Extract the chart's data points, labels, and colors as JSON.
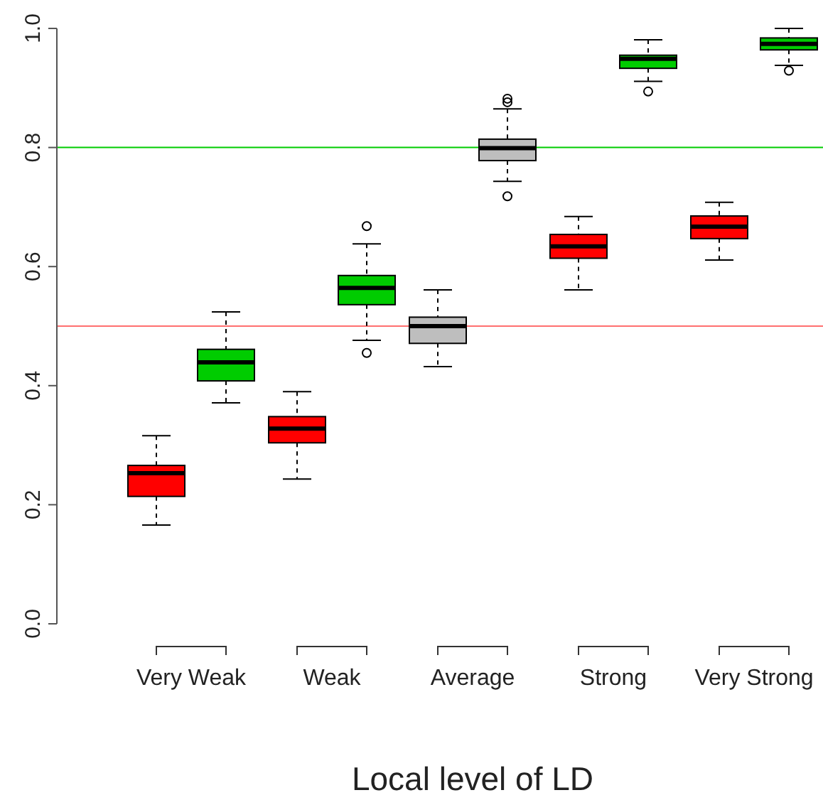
{
  "chart_data": {
    "type": "box",
    "xlabel": "Local level of LD",
    "categories": [
      "Very Weak",
      "Weak",
      "Average",
      "Strong",
      "Very Strong"
    ],
    "ylim": [
      0,
      1
    ],
    "yticks": [
      {
        "value": 0,
        "label": "0.0"
      },
      0.2,
      0.4,
      0.6,
      0.8,
      {
        "value": 1,
        "label": "1.0"
      }
    ],
    "series": [
      {
        "colors": [
          "#ff0000",
          "#ff0000",
          "#bebebe",
          "#ff0000",
          "#ff0000"
        ],
        "boxes": [
          {
            "low": 0.166,
            "q1": 0.214,
            "median": 0.253,
            "q3": 0.266,
            "high": 0.316
          },
          {
            "low": 0.243,
            "q1": 0.304,
            "median": 0.328,
            "q3": 0.348,
            "high": 0.39
          },
          {
            "low": 0.432,
            "q1": 0.471,
            "median": 0.5,
            "q3": 0.515,
            "high": 0.561
          },
          {
            "low": 0.561,
            "q1": 0.614,
            "median": 0.634,
            "q3": 0.654,
            "high": 0.684
          },
          {
            "low": 0.611,
            "q1": 0.647,
            "median": 0.667,
            "q3": 0.685,
            "high": 0.708
          }
        ]
      },
      {
        "colors": [
          "#00cc00",
          "#00cc00",
          "#bebebe",
          "#00cc00",
          "#00cc00"
        ],
        "boxes": [
          {
            "low": 0.371,
            "q1": 0.408,
            "median": 0.439,
            "q3": 0.461,
            "high": 0.524
          },
          {
            "low": 0.476,
            "q1": 0.536,
            "median": 0.564,
            "q3": 0.585,
            "high": 0.638,
            "outliers": [
              0.668,
              0.455
            ]
          },
          {
            "low": 0.743,
            "q1": 0.778,
            "median": 0.799,
            "q3": 0.814,
            "high": 0.865,
            "outliers": [
              0.882,
              0.876,
              0.718
            ]
          },
          {
            "low": 0.911,
            "q1": 0.933,
            "median": 0.949,
            "q3": 0.955,
            "high": 0.981,
            "outliers": [
              0.894
            ]
          },
          {
            "low": 0.938,
            "q1": 0.964,
            "median": 0.974,
            "q3": 0.984,
            "high": 1.0,
            "outliers": [
              0.929
            ]
          }
        ]
      }
    ],
    "ref_lines": [
      {
        "axis": "y",
        "value": 0.8,
        "color": "#00cc00"
      },
      {
        "axis": "y",
        "value": 0.5,
        "color": "#ff7070"
      }
    ]
  }
}
